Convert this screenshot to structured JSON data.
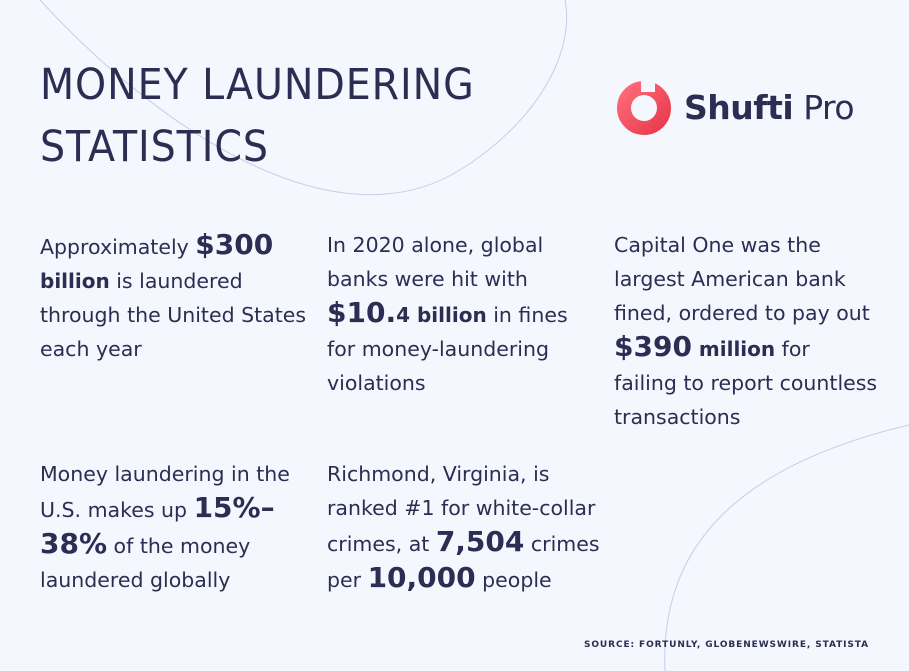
{
  "title": {
    "line1": "MONEY LAUNDERING",
    "line2": "STATISTICS"
  },
  "logo": {
    "word1": "Shufti",
    "word2": "Pro",
    "icon": "ring-logo-icon",
    "gradient": [
      "#ff6b78",
      "#e93a4e"
    ]
  },
  "stats": [
    {
      "pre": "Approximately ",
      "big": "$300",
      "unit": " billion",
      "post": " is laundered through the United States each year"
    },
    {
      "pre": "In 2020 alone, global banks were hit with ",
      "big": "$10.",
      "unit": "4 billion",
      "post": " in fines for money-laundering violations"
    },
    {
      "pre": "Capital One was the largest American bank fined, ordered to pay out ",
      "big": "$390",
      "unit": " million",
      "post": " for failing to report countless transactions"
    },
    {
      "pre": "Money laundering in the U.S. makes up ",
      "big": "15%–38%",
      "unit": "",
      "post": " of the money laundered globally"
    },
    {
      "pre": "Richmond, Virginia, is ranked #1 for white-collar crimes, at ",
      "big": "7,504",
      "unit": "",
      "mid": " crimes per ",
      "big2": "10,000",
      "post": " people"
    }
  ],
  "source": "SOURCE: FORTUNLY, GLOBENEWSWIRE, STATISTA",
  "colors": {
    "background": "#f4f7fd",
    "text": "#2b2d52",
    "accent": "#ee4a5b",
    "deco_line": "#c7cdea"
  }
}
